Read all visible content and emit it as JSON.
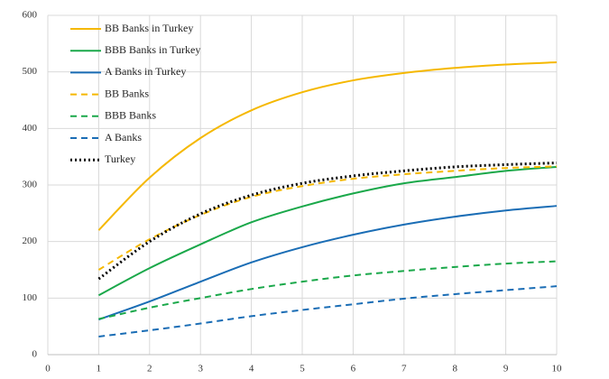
{
  "chart_data": {
    "type": "line",
    "x": [
      1,
      2,
      3,
      4,
      5,
      6,
      7,
      8,
      9,
      10
    ],
    "series": [
      {
        "name": "BB Banks in Turkey",
        "color": "#f5b800",
        "style": "solid",
        "values": [
          220,
          313,
          383,
          432,
          464,
          485,
          498,
          507,
          513,
          517
        ]
      },
      {
        "name": "BBB Banks in Turkey",
        "color": "#1aa84a",
        "style": "solid",
        "values": [
          105,
          153,
          195,
          234,
          262,
          285,
          303,
          314,
          325,
          332
        ]
      },
      {
        "name": "A Banks in Turkey",
        "color": "#1a6db5",
        "style": "solid",
        "values": [
          62,
          94,
          129,
          163,
          190,
          212,
          230,
          244,
          255,
          263
        ]
      },
      {
        "name": "BB Banks",
        "color": "#f5b800",
        "style": "dashed",
        "values": [
          150,
          204,
          247,
          279,
          298,
          311,
          319,
          325,
          330,
          333
        ]
      },
      {
        "name": "BBB Banks",
        "color": "#1aa84a",
        "style": "dashed",
        "values": [
          63,
          83,
          100,
          116,
          129,
          140,
          148,
          155,
          161,
          165
        ]
      },
      {
        "name": "A Banks",
        "color": "#1a6db5",
        "style": "dashed",
        "values": [
          32,
          43,
          55,
          68,
          79,
          89,
          99,
          107,
          114,
          121
        ]
      },
      {
        "name": "Turkey",
        "color": "#000000",
        "style": "dotted",
        "values": [
          134,
          200,
          249,
          282,
          303,
          316,
          325,
          332,
          336,
          339
        ]
      }
    ],
    "xlim": [
      0,
      10
    ],
    "xticks": [
      0,
      1,
      2,
      3,
      4,
      5,
      6,
      7,
      8,
      9,
      10
    ],
    "ylim": [
      0,
      600
    ],
    "yticks": [
      0,
      100,
      200,
      300,
      400,
      500,
      600
    ],
    "grid": true,
    "legend": "upper-left"
  }
}
